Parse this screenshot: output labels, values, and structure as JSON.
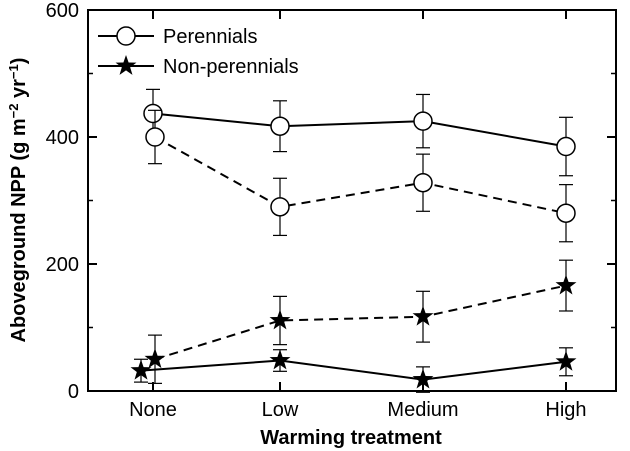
{
  "chart_data": {
    "type": "line",
    "categories": [
      "None",
      "Low",
      "Medium",
      "High"
    ],
    "xlabel": "Warming treatment",
    "ylabel": {
      "main": "Aboveground NPP (g m",
      "exp1": "−2",
      "mid": " yr",
      "exp2": "−1",
      "end": ")"
    },
    "ylim": [
      0,
      600
    ],
    "yticks": [
      "0",
      "200",
      "400",
      "600"
    ],
    "grid": false,
    "legend_position": "top-left",
    "legend": [
      {
        "label": "Perennials",
        "marker": "open-circle"
      },
      {
        "label": "Non-perennials",
        "marker": "filled-star"
      }
    ],
    "series": [
      {
        "group": "Perennials",
        "line_style": "solid",
        "marker": "open-circle",
        "values": [
          437,
          417,
          425,
          385
        ],
        "error": [
          38,
          40,
          42,
          46
        ]
      },
      {
        "group": "Perennials",
        "line_style": "dashed",
        "marker": "open-circle",
        "values": [
          400,
          290,
          328,
          280
        ],
        "error": [
          42,
          45,
          45,
          45
        ]
      },
      {
        "group": "Non-perennials",
        "line_style": "dashed",
        "marker": "filled-star",
        "values": [
          50,
          111,
          117,
          166
        ],
        "error": [
          38,
          38,
          40,
          40
        ]
      },
      {
        "group": "Non-perennials",
        "line_style": "solid",
        "marker": "filled-star",
        "values": [
          32,
          48,
          18,
          46
        ],
        "error": [
          18,
          17,
          20,
          22
        ]
      }
    ]
  }
}
